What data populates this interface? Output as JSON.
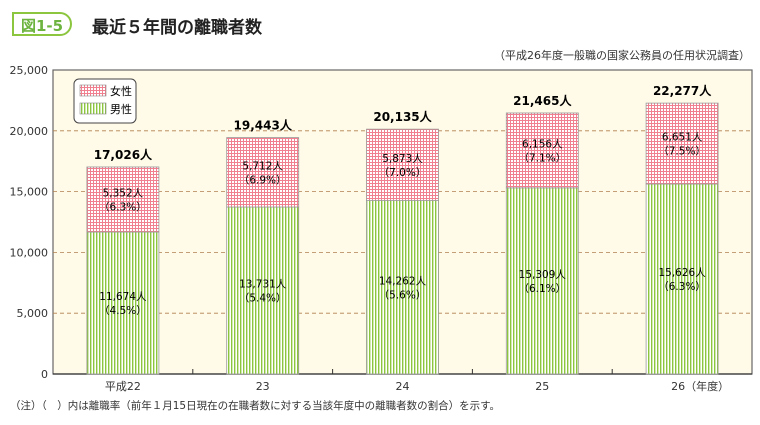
{
  "figure_label": "図1-5",
  "title": "最近５年間の離職者数",
  "source": "（平成26年度一般職の国家公務員の任用状況調査）",
  "note": "（注）（　）内は離職率（前年１月15日現在の在職者数に対する当該年度中の離職者数の割合）を示す。",
  "chart_data": {
    "type": "bar",
    "stacked": true,
    "categories": [
      "平成22",
      "23",
      "24",
      "25",
      "26（年度）"
    ],
    "ylim": [
      0,
      25000
    ],
    "yticks": [
      0,
      5000,
      10000,
      15000,
      20000,
      25000
    ],
    "ytick_labels": [
      "0",
      "5,000",
      "10,000",
      "15,000",
      "20,000",
      "25,000"
    ],
    "grid": "horizontal dashed",
    "legend_position": "top-left",
    "series": [
      {
        "name": "男性",
        "values": [
          11674,
          13731,
          14262,
          15309,
          15626
        ],
        "labels": [
          "11,674人",
          "13,731人",
          "14,262人",
          "15,309人",
          "15,626人"
        ],
        "rates": [
          "（4.5%）",
          "（5.4%）",
          "（5.6%）",
          "（6.1%）",
          "（6.3%）"
        ],
        "color": "#8cc63f"
      },
      {
        "name": "女性",
        "values": [
          5352,
          5712,
          5873,
          6156,
          6651
        ],
        "labels": [
          "5,352人",
          "5,712人",
          "5,873人",
          "6,156人",
          "6,651人"
        ],
        "rates": [
          "（6.3%）",
          "（6.9%）",
          "（7.0%）",
          "（7.1%）",
          "（7.5%）"
        ],
        "color": "#f08090"
      }
    ],
    "totals": [
      "17,026人",
      "19,443人",
      "20,135人",
      "21,465人",
      "22,277人"
    ]
  }
}
